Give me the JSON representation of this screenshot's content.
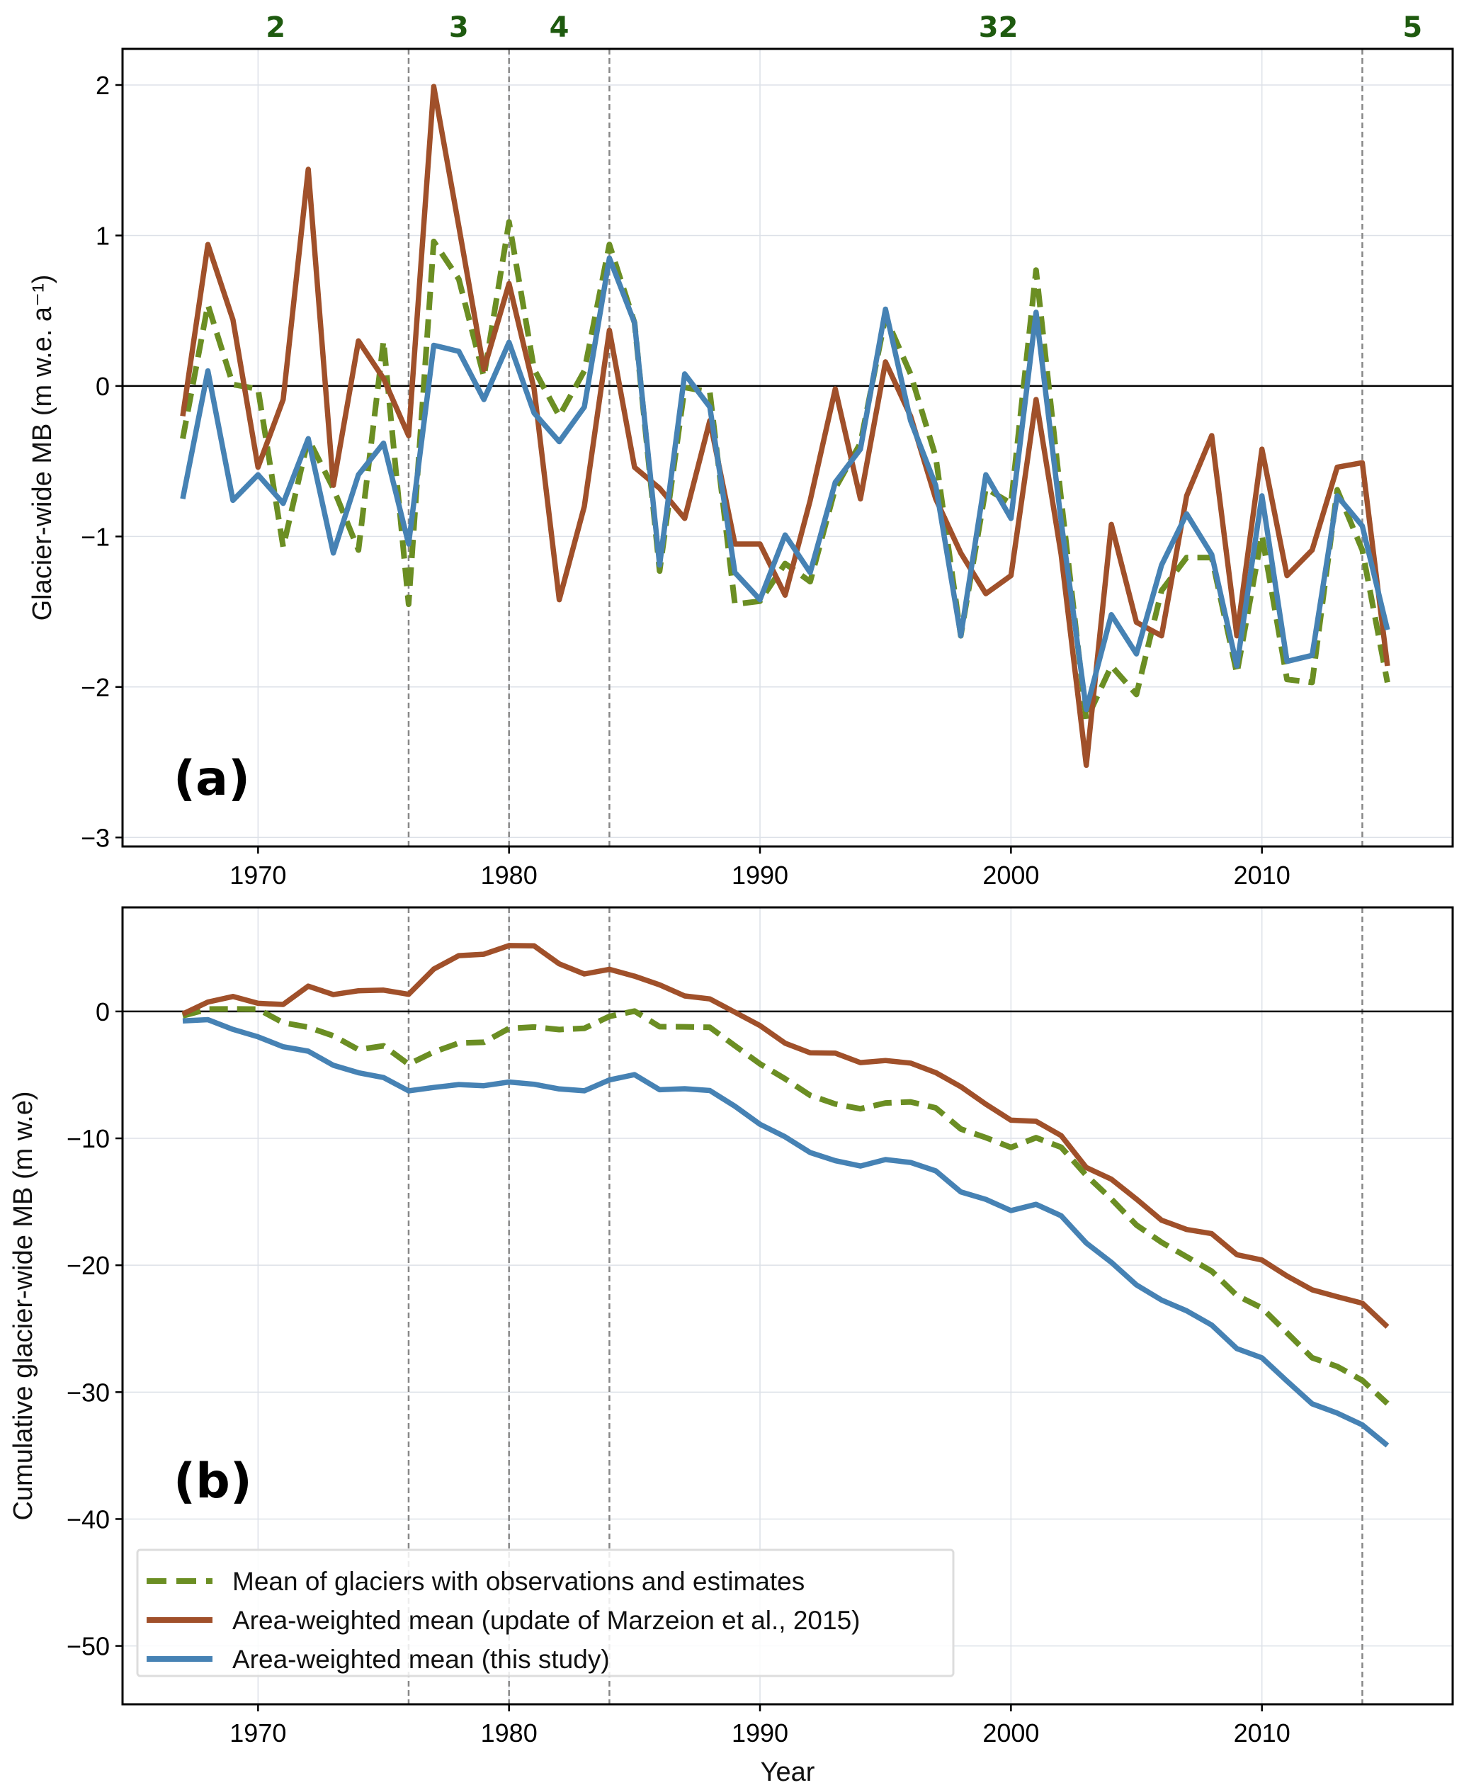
{
  "colors": {
    "observed_mean": "#6b8e23",
    "marzeion": "#a0502a",
    "this_study": "#4682b4",
    "count_labels": "#1e5a0f",
    "period_lines": "#888888"
  },
  "chart_data": [
    {
      "type": "line",
      "panel_label": "(a)",
      "xlabel": "",
      "ylabel": "Glacier-wide MB (m w.e. a⁻¹)",
      "xlim": [
        1964.6,
        2017.6
      ],
      "ylim": [
        -3.06,
        2.24
      ],
      "xticks": [
        1970,
        1980,
        1990,
        2000,
        2010
      ],
      "yticks": [
        2,
        1,
        0,
        -1,
        -2,
        -3
      ],
      "ytick_labels": [
        "2",
        "1",
        "0",
        "−1",
        "−2",
        "−3"
      ],
      "grid": true,
      "zero_line": true,
      "period_boundaries": [
        1976,
        1980,
        1984,
        2014
      ],
      "period_counts": [
        {
          "label": "2",
          "x": 1970.7
        },
        {
          "label": "3",
          "x": 1978
        },
        {
          "label": "4",
          "x": 1982
        },
        {
          "label": "32",
          "x": 1999.5
        },
        {
          "label": "5",
          "x": 2016
        }
      ],
      "x": [
        1967,
        1968,
        1969,
        1970,
        1971,
        1972,
        1973,
        1974,
        1975,
        1976,
        1977,
        1978,
        1979,
        1980,
        1981,
        1982,
        1983,
        1984,
        1985,
        1986,
        1987,
        1988,
        1989,
        1990,
        1991,
        1992,
        1993,
        1994,
        1995,
        1996,
        1997,
        1998,
        1999,
        2000,
        2001,
        2002,
        2003,
        2004,
        2005,
        2006,
        2007,
        2008,
        2009,
        2010,
        2011,
        2012,
        2013,
        2014,
        2015
      ],
      "series": [
        {
          "name": "Mean of glaciers with observations and estimates",
          "style": "dashed",
          "color_key": "observed_mean",
          "values": [
            -0.35,
            0.54,
            0.01,
            -0.02,
            -1.07,
            -0.35,
            -0.68,
            -1.09,
            0.3,
            -1.45,
            0.96,
            0.71,
            0.06,
            1.09,
            0.11,
            -0.2,
            0.1,
            0.94,
            0.42,
            -1.23,
            -0.01,
            -0.04,
            -1.45,
            -1.43,
            -1.18,
            -1.3,
            -0.68,
            -0.38,
            0.46,
            0.08,
            -0.47,
            -1.66,
            -0.68,
            -0.78,
            0.77,
            -0.75,
            -2.22,
            -1.86,
            -2.05,
            -1.36,
            -1.14,
            -1.14,
            -1.91,
            -0.99,
            -1.95,
            -1.97,
            -0.69,
            -1.09,
            -1.97
          ]
        },
        {
          "name": "Area-weighted mean (update of Marzeion et al., 2015)",
          "style": "solid",
          "color_key": "marzeion",
          "values": [
            -0.2,
            0.94,
            0.44,
            -0.54,
            -0.09,
            1.44,
            -0.66,
            0.3,
            0.05,
            -0.33,
            1.99,
            1.06,
            0.11,
            0.68,
            -0.02,
            -1.42,
            -0.8,
            0.37,
            -0.54,
            -0.68,
            -0.88,
            -0.23,
            -1.05,
            -1.05,
            -1.39,
            -0.76,
            -0.02,
            -0.75,
            0.16,
            -0.2,
            -0.75,
            -1.11,
            -1.38,
            -1.26,
            -0.09,
            -1.12,
            -2.52,
            -0.92,
            -1.57,
            -1.66,
            -0.73,
            -0.33,
            -1.66,
            -0.42,
            -1.26,
            -1.09,
            -0.54,
            -0.51,
            -1.86
          ]
        },
        {
          "name": "Area-weighted mean (this study)",
          "style": "solid",
          "color_key": "this_study",
          "values": [
            -0.75,
            0.1,
            -0.76,
            -0.59,
            -0.78,
            -0.35,
            -1.11,
            -0.59,
            -0.38,
            -1.05,
            0.27,
            0.23,
            -0.09,
            0.29,
            -0.18,
            -0.37,
            -0.14,
            0.85,
            0.42,
            -1.19,
            0.08,
            -0.14,
            -1.24,
            -1.42,
            -0.99,
            -1.24,
            -0.64,
            -0.42,
            0.51,
            -0.23,
            -0.66,
            -1.66,
            -0.59,
            -0.88,
            0.49,
            -0.9,
            -2.15,
            -1.52,
            -1.78,
            -1.19,
            -0.85,
            -1.12,
            -1.86,
            -0.73,
            -1.83,
            -1.79,
            -0.73,
            -0.93,
            -1.62
          ]
        }
      ]
    },
    {
      "type": "line",
      "panel_label": "(b)",
      "xlabel": "Year",
      "ylabel": "Cumulative glacier-wide MB (m w.e)",
      "xlim": [
        1964.6,
        2017.6
      ],
      "ylim": [
        -54.6,
        8.2
      ],
      "xticks": [
        1970,
        1980,
        1990,
        2000,
        2010
      ],
      "yticks": [
        0,
        -10,
        -20,
        -30,
        -40,
        -50
      ],
      "ytick_labels": [
        "0",
        "−10",
        "−20",
        "−30",
        "−40",
        "−50"
      ],
      "grid": true,
      "zero_line": true,
      "period_boundaries": [
        1976,
        1980,
        1984,
        2014
      ],
      "legend": {
        "placement": "lower-left",
        "entries": [
          "Mean of glaciers with observations and estimates",
          "Area-weighted mean (update of Marzeion et al., 2015)",
          "Area-weighted mean (this study)"
        ]
      },
      "x": [
        1967,
        1968,
        1969,
        1970,
        1971,
        1972,
        1973,
        1974,
        1975,
        1976,
        1977,
        1978,
        1979,
        1980,
        1981,
        1982,
        1983,
        1984,
        1985,
        1986,
        1987,
        1988,
        1989,
        1990,
        1991,
        1992,
        1993,
        1994,
        1995,
        1996,
        1997,
        1998,
        1999,
        2000,
        2001,
        2002,
        2003,
        2004,
        2005,
        2006,
        2007,
        2008,
        2009,
        2010,
        2011,
        2012,
        2013,
        2014,
        2015
      ],
      "series": [
        {
          "name": "Mean of glaciers with observations and estimates",
          "style": "dashed",
          "color_key": "observed_mean",
          "values": [
            -0.35,
            0.19,
            0.2,
            0.18,
            -0.89,
            -1.24,
            -1.92,
            -3.01,
            -2.71,
            -4.16,
            -3.2,
            -2.49,
            -2.43,
            -1.34,
            -1.23,
            -1.43,
            -1.33,
            -0.39,
            0.03,
            -1.2,
            -1.21,
            -1.25,
            -2.7,
            -4.13,
            -5.31,
            -6.61,
            -7.29,
            -7.67,
            -7.21,
            -7.13,
            -7.6,
            -9.26,
            -9.94,
            -10.72,
            -9.95,
            -10.7,
            -12.92,
            -14.78,
            -16.83,
            -18.19,
            -19.33,
            -20.47,
            -22.38,
            -23.37,
            -25.32,
            -27.29,
            -27.98,
            -29.07,
            -30.9
          ]
        },
        {
          "name": "Area-weighted mean (update of Marzeion et al., 2015)",
          "style": "solid",
          "color_key": "marzeion",
          "values": [
            -0.2,
            0.74,
            1.18,
            0.64,
            0.55,
            1.99,
            1.33,
            1.63,
            1.68,
            1.35,
            3.34,
            4.4,
            4.51,
            5.19,
            5.17,
            3.75,
            2.95,
            3.32,
            2.78,
            2.1,
            1.22,
            0.99,
            -0.06,
            -1.11,
            -2.5,
            -3.26,
            -3.28,
            -4.03,
            -3.87,
            -4.07,
            -4.82,
            -5.93,
            -7.31,
            -8.57,
            -8.66,
            -9.78,
            -12.3,
            -13.22,
            -14.79,
            -16.45,
            -17.18,
            -17.51,
            -19.17,
            -19.59,
            -20.85,
            -21.94,
            -22.48,
            -22.99,
            -24.85
          ]
        },
        {
          "name": "Area-weighted mean (this study)",
          "style": "solid",
          "color_key": "this_study",
          "values": [
            -0.75,
            -0.65,
            -1.41,
            -2.0,
            -2.78,
            -3.13,
            -4.24,
            -4.83,
            -5.21,
            -6.26,
            -5.99,
            -5.76,
            -5.85,
            -5.56,
            -5.74,
            -6.11,
            -6.25,
            -5.4,
            -4.98,
            -6.17,
            -6.09,
            -6.23,
            -7.47,
            -8.89,
            -9.88,
            -11.12,
            -11.76,
            -12.18,
            -11.67,
            -11.9,
            -12.56,
            -14.22,
            -14.81,
            -15.69,
            -15.2,
            -16.1,
            -18.25,
            -19.77,
            -21.55,
            -22.74,
            -23.59,
            -24.71,
            -26.57,
            -27.3,
            -29.13,
            -30.92,
            -31.65,
            -32.58,
            -34.2
          ]
        }
      ]
    }
  ]
}
